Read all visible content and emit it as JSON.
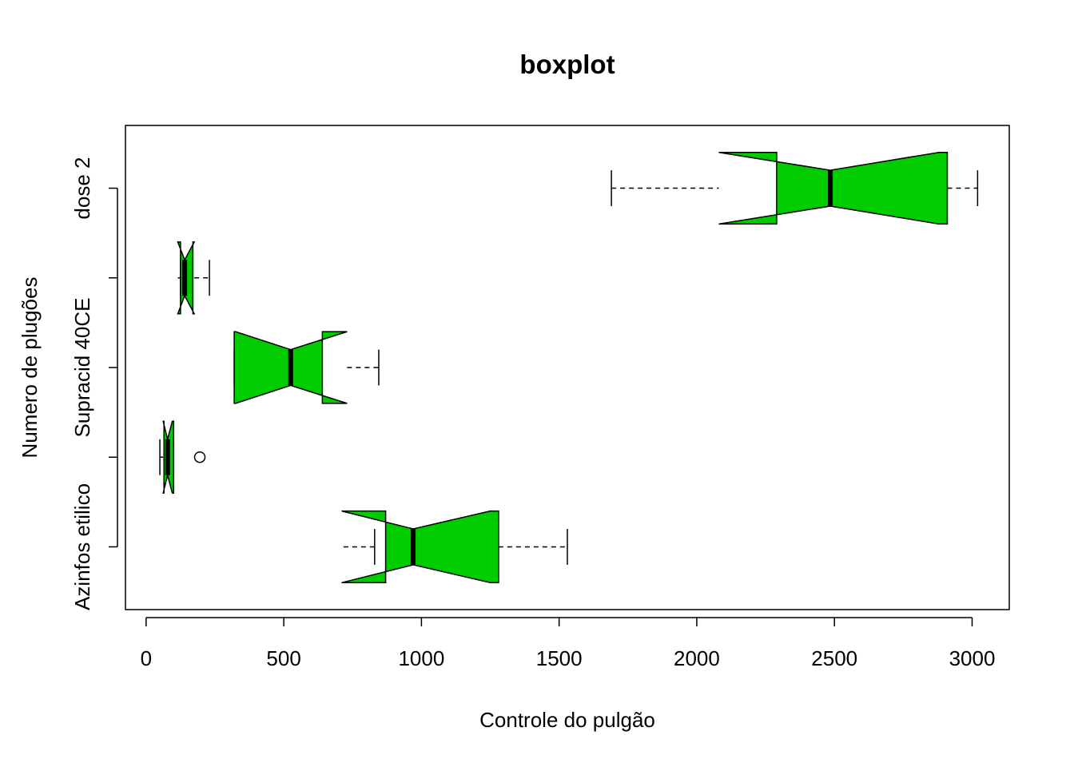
{
  "chart_data": {
    "type": "boxplot",
    "orientation": "horizontal",
    "notched": true,
    "title": "boxplot",
    "xlabel": "Controle do pulgão",
    "ylabel": "Numero de plugões",
    "xlim": [
      -75,
      3135
    ],
    "xticks": [
      0,
      500,
      1000,
      1500,
      2000,
      2500,
      3000
    ],
    "grid": false,
    "legend": "none",
    "box_color": "#00cc00",
    "boxes": [
      {
        "label": "Azinfos etilico",
        "whisker_low": 830,
        "q1": 870,
        "median": 970,
        "q3": 1280,
        "whisker_high": 1530,
        "notch_low": 710,
        "notch_high": 1250,
        "outliers": []
      },
      {
        "label": "",
        "whisker_low": 50,
        "q1": 65,
        "median": 78,
        "q3": 100,
        "whisker_high": 100,
        "notch_low": 62,
        "notch_high": 95,
        "outliers": [
          195
        ]
      },
      {
        "label": "Supracid 40CE",
        "whisker_low": 320,
        "q1": 320,
        "median": 525,
        "q3": 640,
        "whisker_high": 845,
        "notch_low": 325,
        "notch_high": 730,
        "outliers": []
      },
      {
        "label": "",
        "whisker_low": 125,
        "q1": 125,
        "median": 140,
        "q3": 170,
        "whisker_high": 230,
        "notch_low": 115,
        "notch_high": 175,
        "outliers": []
      },
      {
        "label": "dose 2",
        "whisker_low": 1690,
        "q1": 2290,
        "median": 2485,
        "q3": 2910,
        "whisker_high": 3020,
        "notch_low": 2080,
        "notch_high": 2880,
        "outliers": []
      }
    ]
  }
}
